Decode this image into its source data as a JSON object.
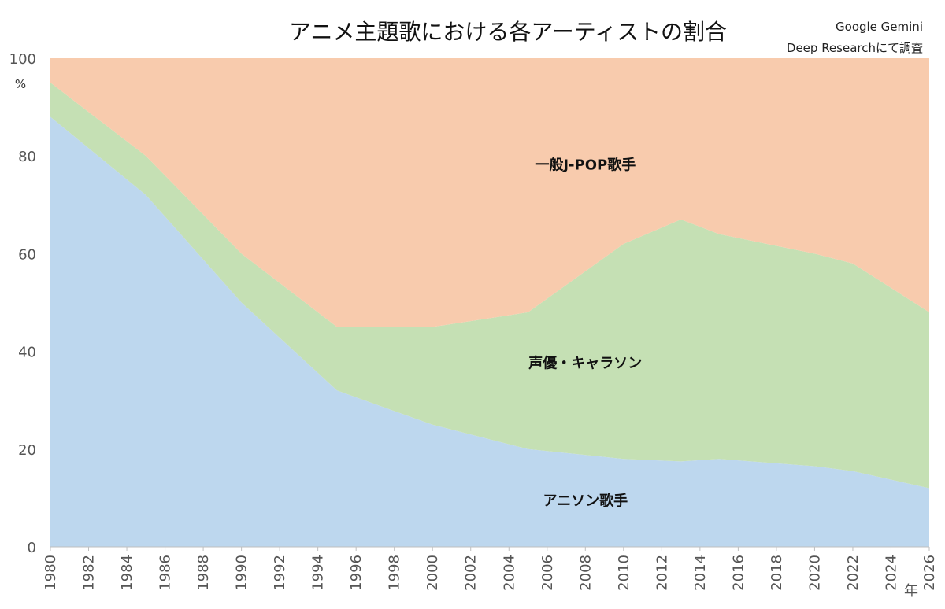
{
  "chart_data": {
    "type": "area",
    "stacked": true,
    "title": "アニメ主題歌における各アーティストの割合",
    "credit": [
      "Google Gemini",
      "Deep Researchにて調査"
    ],
    "ylabel": "%",
    "xlabel": "年",
    "ylim": [
      0,
      100
    ],
    "xlim": [
      1980,
      2026
    ],
    "yticks": [
      "0",
      "20",
      "40",
      "60",
      "80",
      "100"
    ],
    "xticks": [
      "1980",
      "1982",
      "1984",
      "1986",
      "1988",
      "1990",
      "1992",
      "1994",
      "1996",
      "1998",
      "2000",
      "2002",
      "2004",
      "2006",
      "2008",
      "2010",
      "2012",
      "2014",
      "2016",
      "2018",
      "2020",
      "2022",
      "2024",
      "2026"
    ],
    "grid": false,
    "legend": "none",
    "x": [
      1980,
      1985,
      1990,
      1995,
      2000,
      2005,
      2010,
      2013,
      2015,
      2020,
      2022,
      2026
    ],
    "series": [
      {
        "name": "アニソン歌手",
        "color": "#bdd7ee",
        "values": [
          88,
          72,
          50,
          32,
          25,
          20,
          18,
          17.5,
          18,
          16.5,
          15.5,
          12
        ]
      },
      {
        "name": "声優・キャラソン",
        "color": "#c5e0b4",
        "values": [
          7,
          8,
          10,
          13,
          20,
          28,
          44,
          49.5,
          46,
          43.5,
          42.5,
          36
        ]
      },
      {
        "name": "一般J-POP歌手",
        "color": "#f8cbad",
        "values": [
          5,
          20,
          40,
          55,
          55,
          52,
          38,
          33,
          36,
          40,
          42,
          52
        ]
      }
    ]
  }
}
